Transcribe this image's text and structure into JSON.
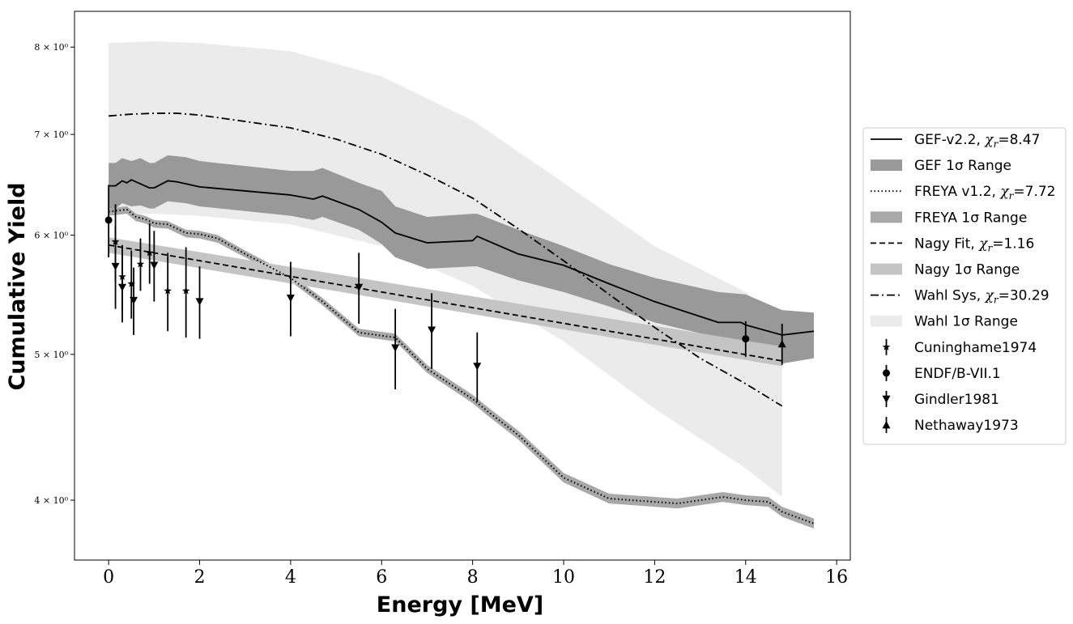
{
  "chart_data": {
    "type": "line",
    "xlabel": "Energy [MeV]",
    "ylabel": "Cumulative Yield",
    "xlim": [
      -0.75,
      16.3
    ],
    "ylim": [
      3.65,
      8.45
    ],
    "yscale": "log",
    "xticks": [
      0,
      2,
      4,
      6,
      8,
      10,
      12,
      14,
      16
    ],
    "xtick_labels": [
      "0",
      "2",
      "4",
      "6",
      "8",
      "10",
      "12",
      "14",
      "16"
    ],
    "yticks": [
      4,
      5,
      6,
      7,
      8
    ],
    "ytick_labels": [
      "4 × 10⁰",
      "5 × 10⁰",
      "6 × 10⁰",
      "7 × 10⁰",
      "8 × 10⁰"
    ],
    "legend_position": "center-right, outside plot",
    "bands": [
      {
        "name": "Wahl 1σ Range",
        "color": "#ebebeb",
        "x": [
          0,
          1,
          2,
          4,
          6,
          8,
          10,
          12,
          14,
          14.8
        ],
        "upper": [
          8.05,
          8.07,
          8.05,
          7.95,
          7.65,
          7.15,
          6.5,
          5.9,
          5.5,
          5.25
        ],
        "lower": [
          6.2,
          6.2,
          6.18,
          6.1,
          5.9,
          5.55,
          5.1,
          4.6,
          4.2,
          4.02
        ]
      },
      {
        "name": "GEF 1σ Range",
        "color": "#999999",
        "x": [
          0,
          0.15,
          0.3,
          0.5,
          0.7,
          0.9,
          1.0,
          1.3,
          1.7,
          2.0,
          4.0,
          4.5,
          4.7,
          5.5,
          6.0,
          6.3,
          7.0,
          8.0,
          8.1,
          9.0,
          10.0,
          11.0,
          12.0,
          13.4,
          14.0,
          14.8,
          15.5
        ],
        "upper": [
          6.7,
          6.7,
          6.75,
          6.72,
          6.75,
          6.7,
          6.7,
          6.78,
          6.76,
          6.72,
          6.62,
          6.62,
          6.65,
          6.5,
          6.42,
          6.27,
          6.17,
          6.2,
          6.2,
          6.05,
          5.9,
          5.74,
          5.62,
          5.5,
          5.48,
          5.35,
          5.33
        ],
        "lower": [
          6.25,
          6.25,
          6.3,
          6.27,
          6.28,
          6.25,
          6.25,
          6.32,
          6.3,
          6.27,
          6.18,
          6.14,
          6.17,
          6.05,
          5.92,
          5.8,
          5.7,
          5.72,
          5.72,
          5.6,
          5.5,
          5.38,
          5.25,
          5.13,
          5.09,
          4.93,
          4.97
        ]
      },
      {
        "name": "FREYA 1σ Range",
        "color": "#a8a8a8",
        "x": [
          0,
          0.2,
          0.4,
          0.6,
          0.8,
          1.0,
          1.3,
          1.7,
          2.0,
          2.4,
          3.0,
          4.0,
          4.7,
          5.5,
          6.3,
          7.0,
          8.0,
          8.3,
          9.0,
          10.0,
          11.0,
          12.5,
          13.5,
          14.0,
          14.5,
          14.8,
          15.5
        ],
        "upper": [
          6.25,
          6.26,
          6.27,
          6.2,
          6.18,
          6.14,
          6.13,
          6.05,
          6.04,
          6.0,
          5.86,
          5.65,
          5.45,
          5.2,
          5.16,
          4.92,
          4.7,
          4.62,
          4.45,
          4.17,
          4.04,
          4.01,
          4.05,
          4.03,
          4.02,
          3.96,
          3.89
        ],
        "lower": [
          6.18,
          6.19,
          6.2,
          6.13,
          6.11,
          6.07,
          6.06,
          5.98,
          5.97,
          5.93,
          5.8,
          5.59,
          5.39,
          5.14,
          5.1,
          4.86,
          4.64,
          4.56,
          4.39,
          4.11,
          3.98,
          3.95,
          3.99,
          3.97,
          3.96,
          3.9,
          3.83
        ]
      },
      {
        "name": "Nagy 1σ Range",
        "color": "#c4c4c4",
        "x": [
          0,
          14.8
        ],
        "upper": [
          5.98,
          5.06
        ],
        "lower": [
          5.84,
          4.91
        ]
      }
    ],
    "series": [
      {
        "name": "Wahl Sys",
        "chi_r": "30.29",
        "style": "dashdot",
        "x": [
          0,
          0.5,
          1,
          1.5,
          2,
          3,
          4,
          5,
          6,
          7,
          8,
          9,
          10,
          11,
          12,
          13,
          14,
          14.8
        ],
        "y": [
          7.2,
          7.22,
          7.23,
          7.23,
          7.21,
          7.14,
          7.07,
          6.95,
          6.79,
          6.58,
          6.35,
          6.06,
          5.77,
          5.48,
          5.21,
          4.97,
          4.78,
          4.62
        ]
      },
      {
        "name": "GEF-v2.2",
        "chi_r": "8.47",
        "style": "solid",
        "x": [
          0,
          0.15,
          0.3,
          0.4,
          0.5,
          0.7,
          0.9,
          1.0,
          1.3,
          1.5,
          1.7,
          2.0,
          4.0,
          4.5,
          4.7,
          5.5,
          6.0,
          6.3,
          7.0,
          8.0,
          8.1,
          9.0,
          10.0,
          11.0,
          12.0,
          13.4,
          13.9,
          14.0,
          14.8,
          15.5
        ],
        "y": [
          6.47,
          6.47,
          6.52,
          6.5,
          6.53,
          6.49,
          6.45,
          6.45,
          6.52,
          6.51,
          6.49,
          6.46,
          6.38,
          6.34,
          6.37,
          6.24,
          6.12,
          6.02,
          5.93,
          5.95,
          5.99,
          5.83,
          5.73,
          5.57,
          5.42,
          5.25,
          5.25,
          5.23,
          5.15,
          5.18
        ]
      },
      {
        "name": "FREYA v1.2",
        "chi_r": "7.72",
        "style": "dotted",
        "x": [
          0,
          0.2,
          0.4,
          0.6,
          0.8,
          1.0,
          1.3,
          1.7,
          2.0,
          2.4,
          3.0,
          4.0,
          4.7,
          5.5,
          6.3,
          7.0,
          8.0,
          8.3,
          9.0,
          10.0,
          11.0,
          12.5,
          13.5,
          14.0,
          14.5,
          14.8,
          15.5
        ],
        "y": [
          6.22,
          6.23,
          6.24,
          6.17,
          6.15,
          6.11,
          6.1,
          6.02,
          6.01,
          5.97,
          5.83,
          5.62,
          5.42,
          5.17,
          5.13,
          4.89,
          4.67,
          4.59,
          4.42,
          4.14,
          4.01,
          3.98,
          4.02,
          4.0,
          3.99,
          3.93,
          3.86
        ]
      },
      {
        "name": "Nagy Fit",
        "chi_r": "1.16",
        "style": "dashed",
        "x": [
          0,
          14.8
        ],
        "y": [
          5.91,
          4.95
        ]
      }
    ],
    "points": [
      {
        "name": "Cuninghame1974",
        "marker": "star",
        "x": [
          0.15,
          0.3,
          0.5,
          0.7,
          0.9,
          1.3,
          1.7
        ],
        "y": [
          5.94,
          5.63,
          5.57,
          5.74,
          5.84,
          5.51,
          5.51
        ],
        "err": [
          0.35,
          0.28,
          0.29,
          0.23,
          0.27,
          0.33,
          0.38
        ]
      },
      {
        "name": "ENDF/B-VII.1",
        "marker": "circle",
        "x": [
          0,
          14
        ],
        "y": [
          6.14,
          5.12
        ],
        "err": [
          0.34,
          0.14
        ]
      },
      {
        "name": "Gindler1981",
        "marker": "triangle-down",
        "x": [
          0.15,
          0.3,
          0.55,
          1.0,
          2.0,
          4.0,
          5.5,
          6.3,
          7.1,
          8.1
        ],
        "y": [
          5.72,
          5.54,
          5.43,
          5.73,
          5.42,
          5.45,
          5.54,
          5.05,
          5.19,
          4.91
        ],
        "err": [
          0.36,
          0.29,
          0.28,
          0.31,
          0.3,
          0.31,
          0.3,
          0.31,
          0.3,
          0.26
        ]
      },
      {
        "name": "Nethaway1973",
        "marker": "triangle-up",
        "x": [
          14.8
        ],
        "y": [
          5.08
        ],
        "err": [
          0.16
        ]
      }
    ],
    "legend": [
      {
        "kind": "line",
        "style": "solid",
        "label": "GEF-v2.2, ",
        "chi": "8.47"
      },
      {
        "kind": "patch",
        "color": "#999999",
        "label": "GEF 1σ Range"
      },
      {
        "kind": "line",
        "style": "dotted",
        "label": "FREYA v1.2, ",
        "chi": "7.72"
      },
      {
        "kind": "patch",
        "color": "#a8a8a8",
        "label": "FREYA 1σ Range"
      },
      {
        "kind": "line",
        "style": "dashed",
        "label": "Nagy Fit, ",
        "chi": "1.16"
      },
      {
        "kind": "patch",
        "color": "#c4c4c4",
        "label": "Nagy 1σ Range"
      },
      {
        "kind": "line",
        "style": "dashdot",
        "label": "Wahl Sys, ",
        "chi": "30.29"
      },
      {
        "kind": "patch",
        "color": "#ebebeb",
        "label": "Wahl 1σ Range"
      },
      {
        "kind": "marker",
        "marker": "star",
        "label": "Cuninghame1974"
      },
      {
        "kind": "marker",
        "marker": "circle",
        "label": "ENDF/B-VII.1"
      },
      {
        "kind": "marker",
        "marker": "triangle-down",
        "label": "Gindler1981"
      },
      {
        "kind": "marker",
        "marker": "triangle-up",
        "label": "Nethaway1973"
      }
    ]
  }
}
